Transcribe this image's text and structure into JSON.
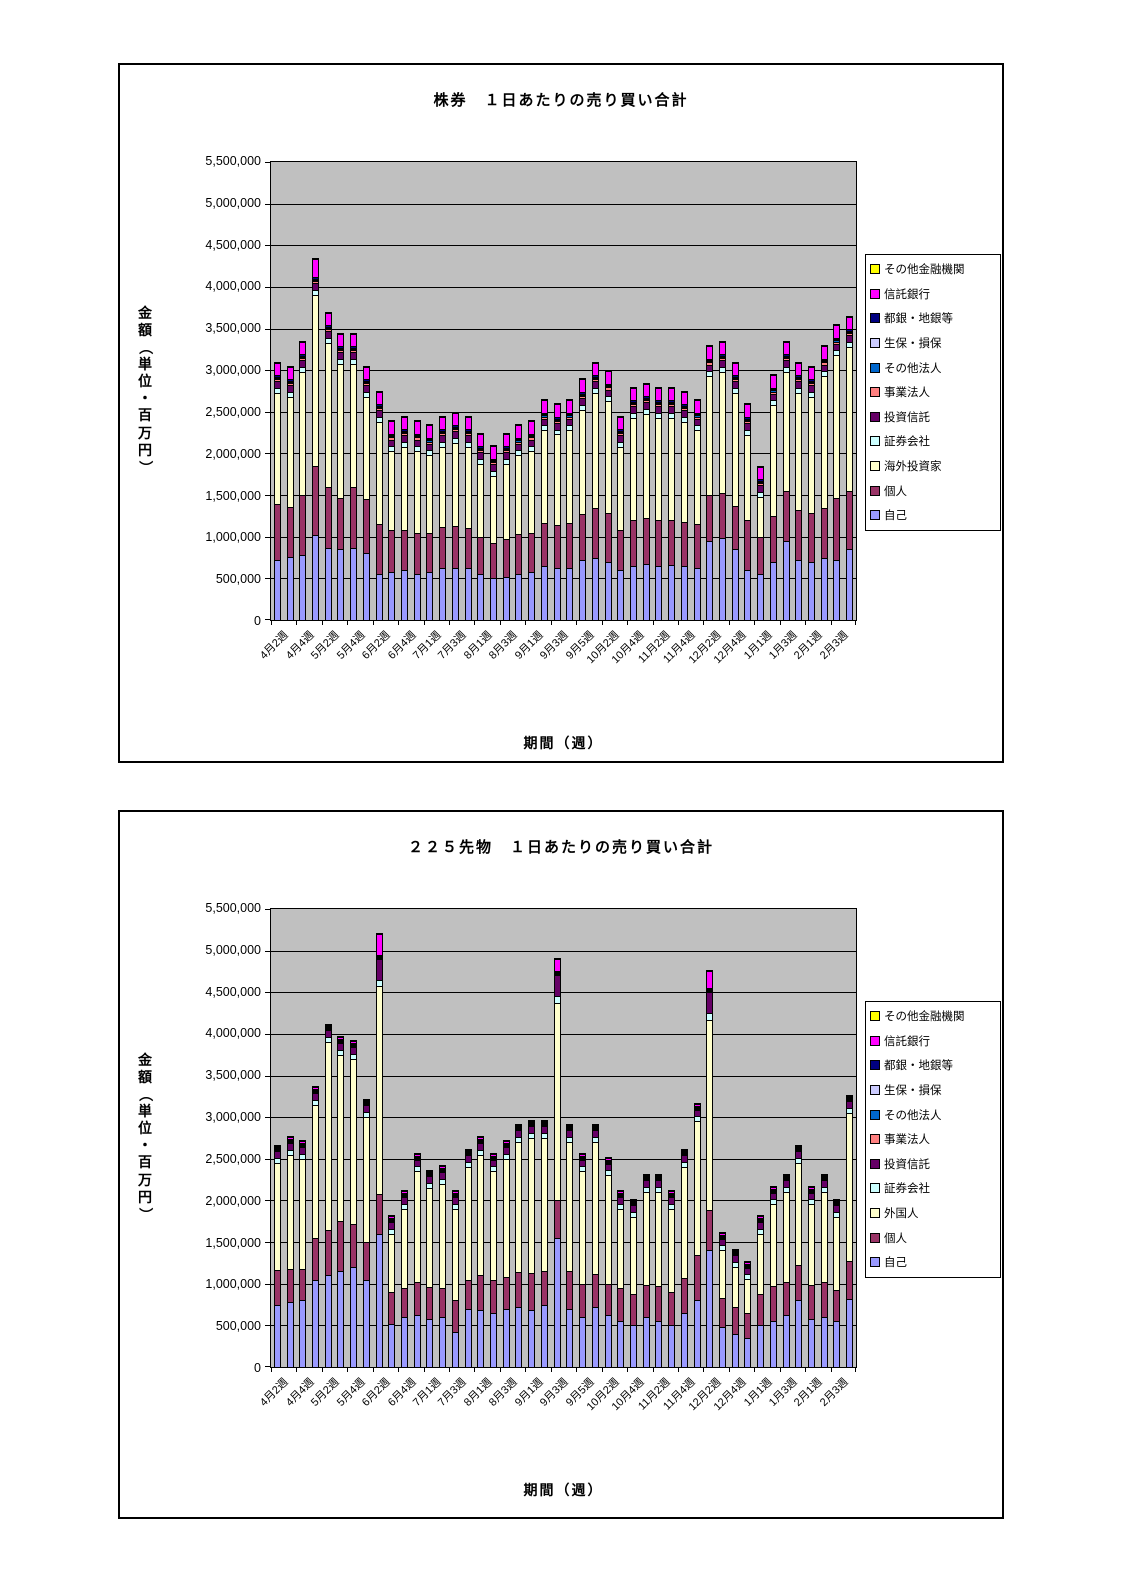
{
  "charts": [
    {
      "title": "株券　１日あたりの売り買い合計",
      "y_axis_title": "金額（単位・百万円）",
      "x_axis_title": "期間（週）",
      "y_tick_labels": [
        "5,500,000",
        "5,000,000",
        "4,500,000",
        "4,000,000",
        "3,500,000",
        "3,000,000",
        "2,500,000",
        "2,000,000",
        "1,500,000",
        "1,000,000",
        "500,000",
        "0"
      ],
      "legend": [
        {
          "label": "その他金融機関",
          "color": "#FFFF00"
        },
        {
          "label": "信託銀行",
          "color": "#FF00FF"
        },
        {
          "label": "都銀・地銀等",
          "color": "#000080"
        },
        {
          "label": "生保・損保",
          "color": "#CCCCFF"
        },
        {
          "label": "その他法人",
          "color": "#0066CC"
        },
        {
          "label": "事業法人",
          "color": "#FF8080"
        },
        {
          "label": "投資信託",
          "color": "#660066"
        },
        {
          "label": "証券会社",
          "color": "#CCFFFF"
        },
        {
          "label": "海外投資家",
          "color": "#FFFFCC"
        },
        {
          "label": "個人",
          "color": "#993366"
        },
        {
          "label": "自己",
          "color": "#9999FF"
        }
      ],
      "chart_data": {
        "type": "bar",
        "stacked": true,
        "n_bars": 46,
        "x_tick_labels": [
          "4月2週",
          "4月4週",
          "5月2週",
          "5月4週",
          "6月2週",
          "6月4週",
          "7月1週",
          "7月3週",
          "8月1週",
          "8月3週",
          "9月1週",
          "9月3週",
          "9月5週",
          "10月2週",
          "10月4週",
          "11月2週",
          "11月4週",
          "12月2週",
          "12月4週",
          "1月1週",
          "1月3週",
          "2月1週",
          "2月3週"
        ],
        "label_every_n_bars": 2,
        "ylim": [
          0,
          5500000
        ],
        "ytick_step": 500000,
        "grid": true,
        "legend_position": "right",
        "series": [
          {
            "key": "jiko",
            "name": "自己",
            "color": "#9999FF",
            "values": [
              720000,
              760000,
              780000,
              1020000,
              870000,
              850000,
              870000,
              800000,
              550000,
              580000,
              600000,
              550000,
              580000,
              620000,
              630000,
              620000,
              550000,
              500000,
              520000,
              550000,
              580000,
              650000,
              620000,
              630000,
              720000,
              750000,
              700000,
              600000,
              650000,
              670000,
              650000,
              660000,
              650000,
              630000,
              950000,
              980000,
              850000,
              600000,
              550000,
              700000,
              950000,
              720000,
              700000,
              750000,
              720000,
              850000
            ]
          },
          {
            "key": "kojin",
            "name": "個人",
            "color": "#993366",
            "values": [
              670000,
              600000,
              720000,
              830000,
              730000,
              620000,
              730000,
              650000,
              600000,
              500000,
              480000,
              500000,
              470000,
              500000,
              500000,
              480000,
              450000,
              420000,
              450000,
              480000,
              470000,
              520000,
              520000,
              530000,
              550000,
              600000,
              580000,
              480000,
              550000,
              550000,
              550000,
              540000,
              530000,
              520000,
              550000,
              550000,
              520000,
              600000,
              450000,
              550000,
              600000,
              600000,
              580000,
              600000,
              750000,
              700000
            ]
          },
          {
            "key": "kaigai",
            "name": "海外投資家",
            "color": "#FFFFCC",
            "values": [
              1338000,
              1318000,
              1478000,
              2058000,
              1728000,
              1608000,
              1478000,
              1228000,
              1228000,
              948000,
              998000,
              978000,
              928000,
              958000,
              998000,
              978000,
              878000,
              808000,
              908000,
              948000,
              978000,
              1108000,
              1088000,
              1118000,
              1258000,
              1378000,
              1348000,
              998000,
              1228000,
              1258000,
              1228000,
              1228000,
              1198000,
              1128000,
              1428000,
              1448000,
              1358000,
              1028000,
              478000,
              1328000,
              1428000,
              1408000,
              1398000,
              1578000,
              1708000,
              1728000
            ]
          },
          {
            "key": "shoken",
            "name": "証券会社",
            "color": "#CCFFFF",
            "const": 60000
          },
          {
            "key": "toshin",
            "name": "投資信託",
            "color": "#660066",
            "const": 80000
          },
          {
            "key": "jigyo",
            "name": "事業法人",
            "color": "#FF8080",
            "const": 25000
          },
          {
            "key": "hojin",
            "name": "その他法人",
            "color": "#0066CC",
            "const": 15000
          },
          {
            "key": "seiho",
            "name": "生保・損保",
            "color": "#CCCCFF",
            "const": 12000
          },
          {
            "key": "togin",
            "name": "都銀・地銀等",
            "color": "#000080",
            "const": 20000
          },
          {
            "key": "shintaku",
            "name": "信託銀行",
            "color": "#FF00FF",
            "const": 150000,
            "const_overrides": {
              "3": 220000
            }
          },
          {
            "key": "kinyu",
            "name": "その他金融機関",
            "color": "#FFFF00",
            "const": 10000
          }
        ]
      }
    },
    {
      "title": "２２５先物　１日あたりの売り買い合計",
      "y_axis_title": "金額（単位・百万円）",
      "x_axis_title": "期間（週）",
      "y_tick_labels": [
        "5,500,000",
        "5,000,000",
        "4,500,000",
        "4,000,000",
        "3,500,000",
        "3,000,000",
        "2,500,000",
        "2,000,000",
        "1,500,000",
        "1,000,000",
        "500,000",
        "0"
      ],
      "legend": [
        {
          "label": "その他金融機関",
          "color": "#FFFF00"
        },
        {
          "label": "信託銀行",
          "color": "#FF00FF"
        },
        {
          "label": "都銀・地銀等",
          "color": "#000080"
        },
        {
          "label": "生保・損保",
          "color": "#CCCCFF"
        },
        {
          "label": "その他法人",
          "color": "#0066CC"
        },
        {
          "label": "事業法人",
          "color": "#FF8080"
        },
        {
          "label": "投資信託",
          "color": "#660066"
        },
        {
          "label": "証券会社",
          "color": "#CCFFFF"
        },
        {
          "label": "外国人",
          "color": "#FFFFCC"
        },
        {
          "label": "個人",
          "color": "#993366"
        },
        {
          "label": "自己",
          "color": "#9999FF"
        }
      ],
      "chart_data": {
        "type": "bar",
        "stacked": true,
        "n_bars": 46,
        "x_tick_labels": [
          "4月2週",
          "4月4週",
          "5月2週",
          "5月4週",
          "6月2週",
          "6月4週",
          "7月1週",
          "7月3週",
          "8月1週",
          "8月3週",
          "9月1週",
          "9月3週",
          "9月5週",
          "10月2週",
          "10月4週",
          "11月2週",
          "11月4週",
          "12月2週",
          "12月4週",
          "1月1週",
          "1月3週",
          "2月1週",
          "2月3週"
        ],
        "label_every_n_bars": 2,
        "ylim": [
          0,
          5500000
        ],
        "ytick_step": 500000,
        "grid": true,
        "legend_position": "right",
        "series": [
          {
            "key": "jiko",
            "name": "自己",
            "color": "#9999FF",
            "values": [
              750000,
              780000,
              800000,
              1050000,
              1100000,
              1150000,
              1200000,
              1050000,
              1600000,
              520000,
              600000,
              620000,
              580000,
              600000,
              420000,
              700000,
              680000,
              650000,
              700000,
              720000,
              680000,
              750000,
              1550000,
              700000,
              600000,
              720000,
              620000,
              550000,
              500000,
              600000,
              550000,
              500000,
              650000,
              800000,
              1400000,
              480000,
              400000,
              350000,
              500000,
              550000,
              620000,
              800000,
              580000,
              600000,
              550000,
              820000
            ]
          },
          {
            "key": "kojin",
            "name": "個人",
            "color": "#993366",
            "values": [
              420000,
              400000,
              380000,
              500000,
              550000,
              600000,
              520000,
              450000,
              480000,
              380000,
              350000,
              400000,
              380000,
              350000,
              380000,
              350000,
              420000,
              400000,
              380000,
              420000,
              450000,
              400000,
              450000,
              450000,
              400000,
              400000,
              380000,
              400000,
              380000,
              380000,
              420000,
              400000,
              420000,
              550000,
              480000,
              350000,
              320000,
              300000,
              380000,
              420000,
              400000,
              420000,
              400000,
              420000,
              380000,
              450000
            ]
          },
          {
            "key": "gaikoku",
            "name": "外国人",
            "color": "#FFFFCC",
            "values": [
              1282000,
              1372000,
              1322000,
              1602000,
              2252000,
              2002000,
              1982000,
              1502000,
              2492000,
              702000,
              952000,
              1332000,
              1192000,
              1252000,
              1102000,
              1352000,
              1452000,
              1302000,
              1422000,
              1562000,
              1622000,
              1602000,
              2372000,
              1552000,
              1352000,
              1582000,
              1302000,
              952000,
              922000,
              1122000,
              1132000,
              1002000,
              1332000,
              1602000,
              2292000,
              572000,
              482000,
              402000,
              722000,
              982000,
              1082000,
              1232000,
              972000,
              1082000,
              872000,
              1782000
            ]
          },
          {
            "key": "shoken",
            "name": "証券会社",
            "color": "#CCFFFF",
            "const": 60000,
            "const_overrides": {
              "8": 80000,
              "22": 80000,
              "34": 80000
            }
          },
          {
            "key": "toshin",
            "name": "投資信託",
            "color": "#660066",
            "const": 80000,
            "const_overrides": {
              "8": 250000,
              "22": 250000,
              "34": 250000
            }
          },
          {
            "key": "jigyo",
            "name": "事業法人",
            "color": "#FF8080",
            "const": 10000,
            "const_overrides": {
              "8": 15000,
              "22": 15000,
              "34": 15000
            }
          },
          {
            "key": "hojin",
            "name": "その他法人",
            "color": "#0066CC",
            "const": 8000
          },
          {
            "key": "seiho",
            "name": "生保・損保",
            "color": "#CCCCFF",
            "const": 5000
          },
          {
            "key": "togin",
            "name": "都銀・地銀等",
            "color": "#000080",
            "const": 10000
          },
          {
            "key": "shintaku",
            "name": "信託銀行",
            "color": "#FF00FF",
            "const": 20000,
            "const_overrides": {
              "8": 250000,
              "22": 150000,
              "34": 200000
            }
          },
          {
            "key": "kinyu",
            "name": "その他金融機関",
            "color": "#FFFF00",
            "const": 5000
          }
        ]
      }
    }
  ]
}
